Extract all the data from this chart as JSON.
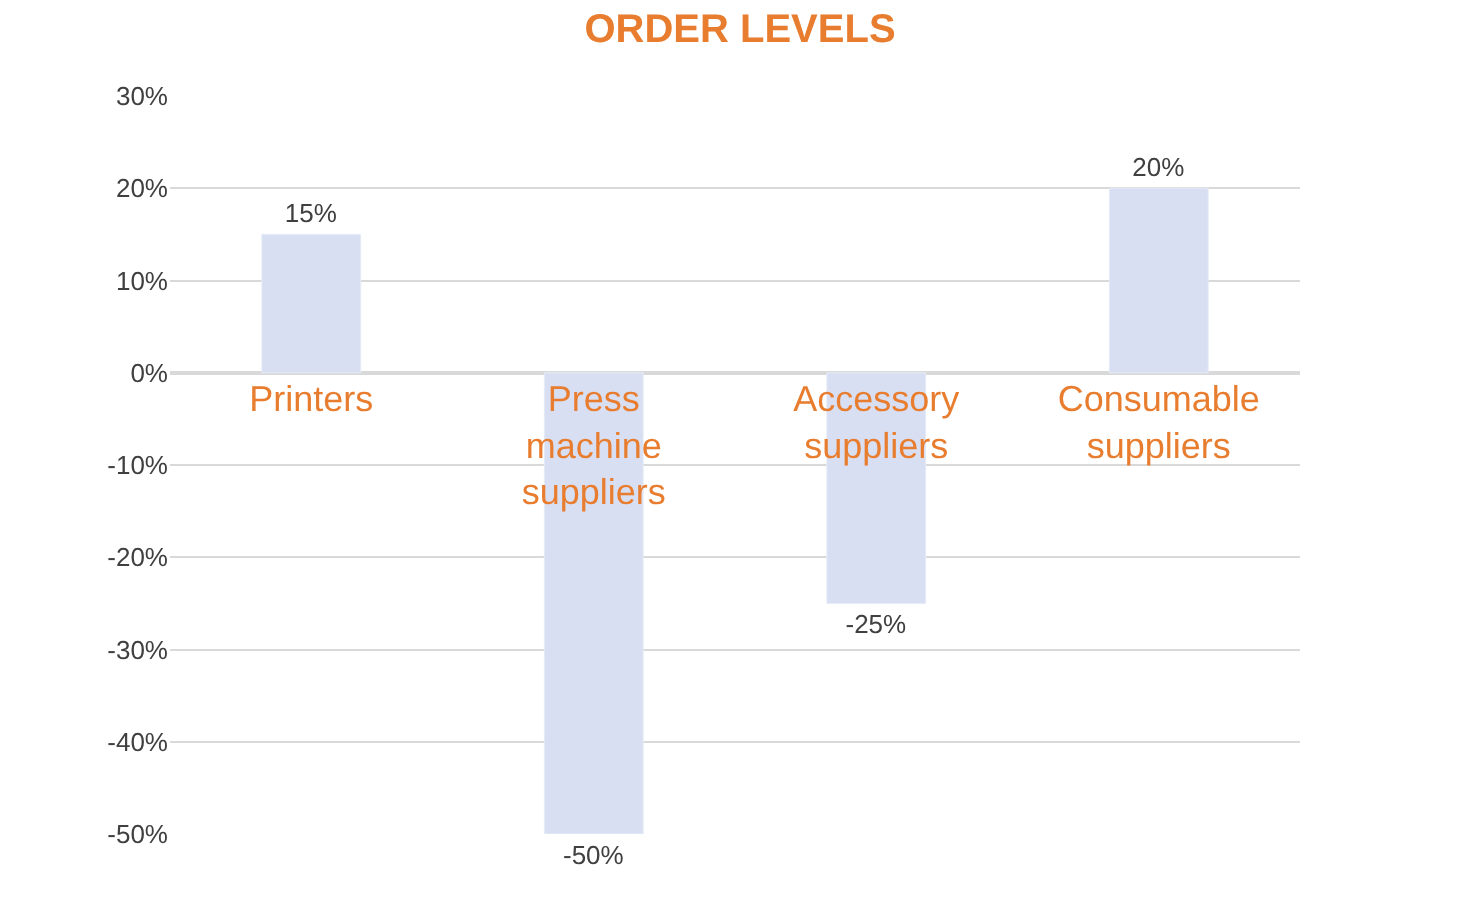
{
  "chart_data": {
    "type": "bar",
    "title": "ORDER LEVELS",
    "categories": [
      "Printers",
      "Press machine suppliers",
      "Accessory suppliers",
      "Consumable suppliers"
    ],
    "values": [
      15,
      -50,
      -25,
      20
    ],
    "value_labels": [
      "15%",
      "-50%",
      "-25%",
      "20%"
    ],
    "color": "#d9dff2",
    "ylim": [
      -50,
      30
    ],
    "yticks": [
      {
        "value": 30,
        "label": "30%"
      },
      {
        "value": 20,
        "label": "20%"
      },
      {
        "value": 10,
        "label": "10%"
      },
      {
        "value": 0,
        "label": "0%"
      },
      {
        "value": -10,
        "label": "-10%"
      },
      {
        "value": -20,
        "label": "-20%"
      },
      {
        "value": -30,
        "label": "-30%"
      },
      {
        "value": -40,
        "label": "-40%"
      },
      {
        "value": -50,
        "label": "-50%"
      }
    ],
    "grid": "y",
    "legend": false
  }
}
